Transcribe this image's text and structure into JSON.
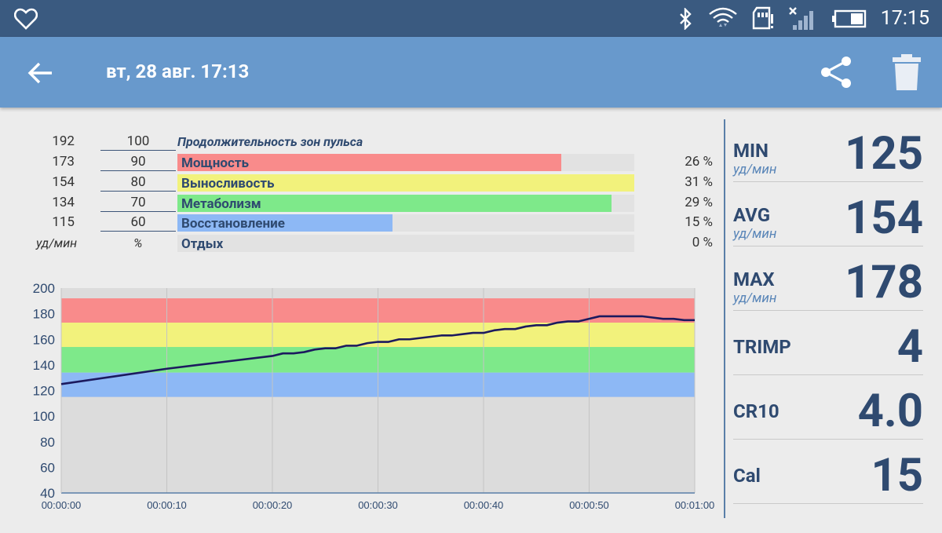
{
  "status": {
    "time": "17:15"
  },
  "app_bar": {
    "title": "вт, 28 авг. 17:13"
  },
  "zones": {
    "title": "Продолжительность зон пульса",
    "unit_bpm": "уд/мин",
    "unit_pct": "%",
    "rows": [
      {
        "bpm": "192",
        "pct": "100",
        "label": "",
        "share": "",
        "fill": 0,
        "color": ""
      },
      {
        "bpm": "173",
        "pct": "90",
        "label": "Мощность",
        "share": "26 %",
        "fill": 0.84,
        "color": "#f98b8b"
      },
      {
        "bpm": "154",
        "pct": "80",
        "label": "Выносливость",
        "share": "31 %",
        "fill": 1.0,
        "color": "#f2f27c"
      },
      {
        "bpm": "134",
        "pct": "70",
        "label": "Метаболизм",
        "share": "29 %",
        "fill": 0.95,
        "color": "#7ee98a"
      },
      {
        "bpm": "115",
        "pct": "60",
        "label": "Восстановление",
        "share": "15 %",
        "fill": 0.47,
        "color": "#8db8f5"
      },
      {
        "bpm": "",
        "pct": "",
        "label": "Отдых",
        "share": "0 %",
        "fill": 0,
        "color": ""
      }
    ]
  },
  "chart_data": {
    "type": "line",
    "x_tick_labels": [
      "00:00:00",
      "00:00:10",
      "00:00:20",
      "00:00:30",
      "00:00:40",
      "00:00:50",
      "00:01:00"
    ],
    "y_tick_labels": [
      "200",
      "180",
      "160",
      "140",
      "120",
      "100",
      "80",
      "60",
      "40"
    ],
    "ylim": [
      40,
      200
    ],
    "xlim": [
      0,
      60
    ],
    "zone_bands": [
      {
        "from": 173,
        "to": 192,
        "color": "#f98b8b"
      },
      {
        "from": 154,
        "to": 173,
        "color": "#f2f27c"
      },
      {
        "from": 134,
        "to": 154,
        "color": "#7ee98a"
      },
      {
        "from": 115,
        "to": 134,
        "color": "#8db8f5"
      }
    ],
    "series": [
      {
        "color": "#1c1a5e",
        "x": [
          0,
          5,
          10,
          15,
          20,
          21,
          22,
          23,
          24,
          25,
          26,
          27,
          28,
          29,
          30,
          31,
          32,
          33,
          34,
          35,
          36,
          37,
          38,
          39,
          40,
          41,
          42,
          43,
          44,
          45,
          46,
          47,
          48,
          49,
          50,
          51,
          52,
          53,
          54,
          55,
          56,
          57,
          58,
          59,
          60
        ],
        "y": [
          125,
          131,
          137,
          142,
          147,
          149,
          149,
          150,
          152,
          153,
          153,
          155,
          155,
          157,
          158,
          158,
          160,
          160,
          161,
          162,
          163,
          163,
          164,
          165,
          165,
          167,
          168,
          168,
          170,
          171,
          171,
          173,
          174,
          174,
          176,
          178,
          178,
          178,
          178,
          178,
          177,
          176,
          176,
          175,
          175
        ]
      }
    ]
  },
  "stats": [
    {
      "label": "MIN",
      "unit": "уд/мин",
      "value": "125"
    },
    {
      "label": "AVG",
      "unit": "уд/мин",
      "value": "154"
    },
    {
      "label": "MAX",
      "unit": "уд/мин",
      "value": "178"
    },
    {
      "label": "TRIMP",
      "unit": "",
      "value": "4"
    },
    {
      "label": "CR10",
      "unit": "",
      "value": "4.0"
    },
    {
      "label": "Cal",
      "unit": "",
      "value": "15"
    }
  ]
}
